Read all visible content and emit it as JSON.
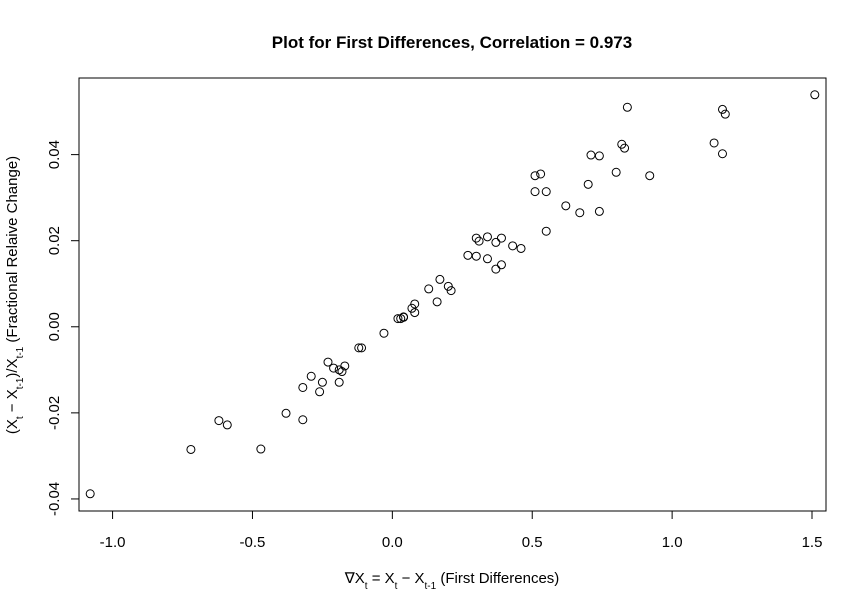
{
  "chart_data": {
    "type": "scatter",
    "title": "Plot for First Differences, Correlation =  0.973",
    "xlabel": {
      "prefix": "∇X",
      "sub1": "t",
      "mid": " = X",
      "sub2": "t",
      "mid2": " − X",
      "sub3": "t-1",
      "suffix": " (First Differences)"
    },
    "ylabel": {
      "p1": "(X",
      "s1": "t",
      "p2": " − X",
      "s2": "t-1",
      "p3": ")/X",
      "s3": "t-1",
      "p4": " (Fractional Relaive Change)"
    },
    "xlim": [
      -1.12,
      1.55
    ],
    "ylim": [
      -0.0428,
      0.0578
    ],
    "xticks": [
      -1.0,
      -0.5,
      0.0,
      0.5,
      1.0,
      1.5
    ],
    "xtick_labels": [
      "-1.0",
      "-0.5",
      "0.0",
      "0.5",
      "1.0",
      "1.5"
    ],
    "yticks": [
      -0.04,
      -0.02,
      0.0,
      0.02,
      0.04
    ],
    "ytick_labels": [
      "-0.04",
      "-0.02",
      "0.00",
      "0.02",
      "0.04"
    ],
    "grid": false,
    "marker": "open-circle",
    "points": [
      [
        -1.08,
        -0.0388
      ],
      [
        -0.72,
        -0.0285
      ],
      [
        -0.62,
        -0.0218
      ],
      [
        -0.59,
        -0.0228
      ],
      [
        -0.47,
        -0.0284
      ],
      [
        -0.38,
        -0.0201
      ],
      [
        -0.32,
        -0.0216
      ],
      [
        -0.32,
        -0.0141
      ],
      [
        -0.29,
        -0.0115
      ],
      [
        -0.26,
        -0.0151
      ],
      [
        -0.25,
        -0.0129
      ],
      [
        -0.23,
        -0.0082
      ],
      [
        -0.21,
        -0.0096
      ],
      [
        -0.19,
        -0.01
      ],
      [
        -0.19,
        -0.0129
      ],
      [
        -0.18,
        -0.0104
      ],
      [
        -0.17,
        -0.0091
      ],
      [
        -0.12,
        -0.0049
      ],
      [
        -0.11,
        -0.0049
      ],
      [
        -0.03,
        -0.0015
      ],
      [
        0.02,
        0.0019
      ],
      [
        0.03,
        0.0019
      ],
      [
        0.04,
        0.0023
      ],
      [
        0.04,
        0.0022
      ],
      [
        0.07,
        0.0043
      ],
      [
        0.08,
        0.0053
      ],
      [
        0.08,
        0.0033
      ],
      [
        0.13,
        0.0088
      ],
      [
        0.16,
        0.0058
      ],
      [
        0.17,
        0.011
      ],
      [
        0.2,
        0.0094
      ],
      [
        0.21,
        0.0084
      ],
      [
        0.27,
        0.0166
      ],
      [
        0.3,
        0.0206
      ],
      [
        0.31,
        0.0199
      ],
      [
        0.3,
        0.0164
      ],
      [
        0.34,
        0.0209
      ],
      [
        0.34,
        0.0158
      ],
      [
        0.37,
        0.0196
      ],
      [
        0.37,
        0.0134
      ],
      [
        0.39,
        0.0206
      ],
      [
        0.39,
        0.0144
      ],
      [
        0.43,
        0.0188
      ],
      [
        0.46,
        0.0182
      ],
      [
        0.51,
        0.0351
      ],
      [
        0.51,
        0.0314
      ],
      [
        0.53,
        0.0355
      ],
      [
        0.55,
        0.0314
      ],
      [
        0.55,
        0.0222
      ],
      [
        0.62,
        0.0281
      ],
      [
        0.67,
        0.0265
      ],
      [
        0.7,
        0.0331
      ],
      [
        0.71,
        0.0399
      ],
      [
        0.74,
        0.0397
      ],
      [
        0.74,
        0.0268
      ],
      [
        0.8,
        0.0359
      ],
      [
        0.82,
        0.0424
      ],
      [
        0.83,
        0.0415
      ],
      [
        0.84,
        0.051
      ],
      [
        0.92,
        0.0351
      ],
      [
        1.15,
        0.0427
      ],
      [
        1.18,
        0.0505
      ],
      [
        1.18,
        0.0402
      ],
      [
        1.19,
        0.0494
      ],
      [
        1.51,
        0.0539
      ]
    ]
  }
}
